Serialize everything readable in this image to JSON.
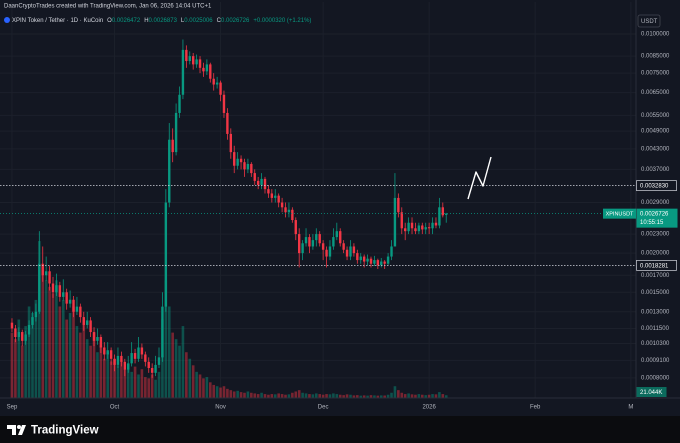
{
  "chart_data": {
    "type": "candlestick",
    "author_line": "DaanCryptoTrades created with TradingView.com, Jan 06, 2026 14:04 UTC+1",
    "symbol_line": "XPIN Token / Tether · 1D · KuCoin",
    "ohlc_legend": [
      {
        "key": "O",
        "text": "0.0026472"
      },
      {
        "key": "H",
        "text": "0.0026873"
      },
      {
        "key": "L",
        "text": "0.0025006"
      },
      {
        "key": "C",
        "text": "0.0026726"
      }
    ],
    "change_text": "+0.0000320 (+1.21%)",
    "currency": "USDT",
    "brand": "TradingView",
    "log_scale": true,
    "grid": true,
    "up_color": "#089981",
    "down_color": "#f23645",
    "xlim": [
      -3.5,
      182.5
    ],
    "xticks": [
      {
        "value": 0,
        "label": "Sep"
      },
      {
        "value": 30,
        "label": "Oct"
      },
      {
        "value": 61,
        "label": "Nov"
      },
      {
        "value": 91,
        "label": "Dec"
      },
      {
        "value": 122,
        "label": "2026"
      },
      {
        "value": 153,
        "label": "Feb"
      },
      {
        "value": 181,
        "label": "M"
      }
    ],
    "ylim": [
      0.00069,
      0.01265
    ],
    "yticks": [
      {
        "value": 0.01,
        "label": "0.0100000"
      },
      {
        "value": 0.0085,
        "label": "0.0085000"
      },
      {
        "value": 0.0075,
        "label": "0.0075000"
      },
      {
        "value": 0.0065,
        "label": "0.0065000"
      },
      {
        "value": 0.0055,
        "label": "0.0055000"
      },
      {
        "value": 0.0049,
        "label": "0.0049000"
      },
      {
        "value": 0.0043,
        "label": "0.0043000"
      },
      {
        "value": 0.0037,
        "label": "0.0037000"
      },
      {
        "value": 0.0029,
        "label": "0.0029000"
      },
      {
        "value": 0.0023,
        "label": "0.0023000"
      },
      {
        "value": 0.002,
        "label": "0.0020000"
      },
      {
        "value": 0.0017,
        "label": "0.0017000"
      },
      {
        "value": 0.0015,
        "label": "0.0015000"
      },
      {
        "value": 0.0013,
        "label": "0.0013000"
      },
      {
        "value": 0.00115,
        "label": "0.0011500"
      },
      {
        "value": 0.00103,
        "label": "0.0010300"
      },
      {
        "value": 0.00091,
        "label": "0.0009100"
      },
      {
        "value": 0.0008,
        "label": "0.0008000"
      }
    ],
    "hlines": [
      {
        "value": 0.003283,
        "label": "0.0032830"
      },
      {
        "value": 0.0018281,
        "label": "0.0018281"
      }
    ],
    "last_price": {
      "value": 0.0026726,
      "label": "0.0026726",
      "symbol": "XPINUSDT",
      "countdown": "10:55:15"
    },
    "volume_max": 1300000,
    "volume_last_label": "21.044K",
    "ohlc": [
      [
        0.0012,
        0.00124,
        0.00112,
        0.00115
      ],
      [
        0.00115,
        0.00118,
        0.00104,
        0.00108
      ],
      [
        0.00108,
        0.00116,
        0.00105,
        0.00112
      ],
      [
        0.00112,
        0.00114,
        0.00101,
        0.00105
      ],
      [
        0.00105,
        0.00113,
        0.00102,
        0.0011
      ],
      [
        0.0011,
        0.00122,
        0.00108,
        0.00118
      ],
      [
        0.00118,
        0.0013,
        0.00115,
        0.00125
      ],
      [
        0.00125,
        0.00138,
        0.00121,
        0.0013
      ],
      [
        0.0013,
        0.00235,
        0.00128,
        0.00185
      ],
      [
        0.00185,
        0.0021,
        0.00162,
        0.0017
      ],
      [
        0.0017,
        0.00195,
        0.00163,
        0.00175
      ],
      [
        0.00175,
        0.00182,
        0.00152,
        0.0016
      ],
      [
        0.0016,
        0.00168,
        0.00144,
        0.0015
      ],
      [
        0.0015,
        0.00172,
        0.00146,
        0.00158
      ],
      [
        0.00158,
        0.00162,
        0.0014,
        0.00145
      ],
      [
        0.00145,
        0.00165,
        0.00141,
        0.0015
      ],
      [
        0.0015,
        0.00154,
        0.00132,
        0.00138
      ],
      [
        0.00138,
        0.00152,
        0.00134,
        0.00142
      ],
      [
        0.00142,
        0.00146,
        0.00125,
        0.0013
      ],
      [
        0.0013,
        0.00145,
        0.00127,
        0.00135
      ],
      [
        0.00135,
        0.00138,
        0.0012,
        0.00125
      ],
      [
        0.00125,
        0.0013,
        0.00113,
        0.00118
      ],
      [
        0.00118,
        0.0013,
        0.00115,
        0.00122
      ],
      [
        0.00122,
        0.00125,
        0.00108,
        0.00112
      ],
      [
        0.00112,
        0.00116,
        0.00101,
        0.00105
      ],
      [
        0.00105,
        0.00115,
        0.00102,
        0.00108
      ],
      [
        0.00108,
        0.0011,
        0.00096,
        0.001
      ],
      [
        0.001,
        0.00104,
        0.00091,
        0.00095
      ],
      [
        0.00095,
        0.00104,
        0.00092,
        0.00098
      ],
      [
        0.00098,
        0.001,
        0.00088,
        0.00092
      ],
      [
        0.00092,
        0.00095,
        0.00084,
        0.00088
      ],
      [
        0.00088,
        0.001,
        0.00086,
        0.00094
      ],
      [
        0.00094,
        0.00097,
        0.00087,
        0.0009
      ],
      [
        0.0009,
        0.00092,
        0.00081,
        0.00085
      ],
      [
        0.00085,
        0.00094,
        0.00083,
        0.00089
      ],
      [
        0.00089,
        0.00104,
        0.00087,
        0.00096
      ],
      [
        0.00096,
        0.00099,
        0.00089,
        0.00092
      ],
      [
        0.00092,
        0.00108,
        0.0009,
        0.001
      ],
      [
        0.001,
        0.00103,
        0.00092,
        0.00095
      ],
      [
        0.00095,
        0.00097,
        0.00087,
        0.0009
      ],
      [
        0.0009,
        0.00093,
        0.00083,
        0.00086
      ],
      [
        0.00086,
        0.00089,
        0.0008,
        0.00083
      ],
      [
        0.00083,
        0.00094,
        0.00081,
        0.00088
      ],
      [
        0.00088,
        0.001,
        0.00086,
        0.00093
      ],
      [
        0.00093,
        0.0015,
        0.0009,
        0.00135
      ],
      [
        0.00135,
        0.0032,
        0.0013,
        0.0029
      ],
      [
        0.0029,
        0.0052,
        0.0028,
        0.0046
      ],
      [
        0.0046,
        0.005,
        0.0039,
        0.0042
      ],
      [
        0.0042,
        0.006,
        0.0041,
        0.0056
      ],
      [
        0.0056,
        0.0068,
        0.0054,
        0.0064
      ],
      [
        0.0064,
        0.0096,
        0.0062,
        0.0089
      ],
      [
        0.0089,
        0.0092,
        0.0078,
        0.0082
      ],
      [
        0.0082,
        0.0088,
        0.008,
        0.0085
      ],
      [
        0.0085,
        0.0087,
        0.0077,
        0.008
      ],
      [
        0.008,
        0.0086,
        0.0078,
        0.0083
      ],
      [
        0.0083,
        0.0085,
        0.0075,
        0.0078
      ],
      [
        0.0078,
        0.0081,
        0.0073,
        0.0076
      ],
      [
        0.0076,
        0.0083,
        0.0074,
        0.008
      ],
      [
        0.008,
        0.0081,
        0.007,
        0.0072
      ],
      [
        0.0072,
        0.0075,
        0.0066,
        0.0069
      ],
      [
        0.0069,
        0.0073,
        0.0067,
        0.007
      ],
      [
        0.007,
        0.0071,
        0.0061,
        0.0064
      ],
      [
        0.0064,
        0.0066,
        0.0054,
        0.0056
      ],
      [
        0.0056,
        0.0058,
        0.0046,
        0.0048
      ],
      [
        0.0048,
        0.005,
        0.004,
        0.0042
      ],
      [
        0.0042,
        0.0044,
        0.0036,
        0.0038
      ],
      [
        0.0038,
        0.0042,
        0.0037,
        0.004
      ],
      [
        0.004,
        0.0041,
        0.0037,
        0.0039
      ],
      [
        0.0039,
        0.004,
        0.0035,
        0.0037
      ],
      [
        0.0037,
        0.004,
        0.0036,
        0.00385
      ],
      [
        0.00385,
        0.0039,
        0.0035,
        0.0036
      ],
      [
        0.0036,
        0.0037,
        0.0033,
        0.0034
      ],
      [
        0.0034,
        0.0035,
        0.0032,
        0.0033
      ],
      [
        0.0033,
        0.0036,
        0.0032,
        0.00345
      ],
      [
        0.00345,
        0.0035,
        0.0031,
        0.0032
      ],
      [
        0.0032,
        0.0033,
        0.003,
        0.0031
      ],
      [
        0.0031,
        0.0032,
        0.0029,
        0.003
      ],
      [
        0.003,
        0.0032,
        0.0029,
        0.00305
      ],
      [
        0.00305,
        0.0031,
        0.0028,
        0.0029
      ],
      [
        0.0029,
        0.003,
        0.0027,
        0.0028
      ],
      [
        0.0028,
        0.0029,
        0.0026,
        0.0027
      ],
      [
        0.0027,
        0.0029,
        0.0026,
        0.00275
      ],
      [
        0.00275,
        0.0028,
        0.0025,
        0.00255
      ],
      [
        0.00255,
        0.0026,
        0.0022,
        0.0023
      ],
      [
        0.0023,
        0.0024,
        0.0018,
        0.002
      ],
      [
        0.002,
        0.0022,
        0.0019,
        0.00215
      ],
      [
        0.00215,
        0.0024,
        0.0021,
        0.00225
      ],
      [
        0.00225,
        0.0023,
        0.002,
        0.0021
      ],
      [
        0.0021,
        0.0023,
        0.00205,
        0.0022
      ],
      [
        0.0022,
        0.0024,
        0.0021,
        0.0023
      ],
      [
        0.0023,
        0.00235,
        0.0021,
        0.00215
      ],
      [
        0.00215,
        0.0022,
        0.0019,
        0.00205
      ],
      [
        0.00205,
        0.0021,
        0.0018,
        0.00195
      ],
      [
        0.00195,
        0.0022,
        0.0019,
        0.0021
      ],
      [
        0.0021,
        0.0024,
        0.00205,
        0.00225
      ],
      [
        0.00225,
        0.0025,
        0.0022,
        0.00235
      ],
      [
        0.00235,
        0.0024,
        0.0021,
        0.00215
      ],
      [
        0.00215,
        0.0022,
        0.002,
        0.00205
      ],
      [
        0.00205,
        0.0021,
        0.0019,
        0.00195
      ],
      [
        0.00195,
        0.0022,
        0.0019,
        0.0021
      ],
      [
        0.0021,
        0.00215,
        0.00195,
        0.002
      ],
      [
        0.002,
        0.00205,
        0.00185,
        0.0019
      ],
      [
        0.0019,
        0.002,
        0.00185,
        0.00195
      ],
      [
        0.00195,
        0.00198,
        0.0018,
        0.00188
      ],
      [
        0.00188,
        0.00198,
        0.00183,
        0.00192
      ],
      [
        0.00192,
        0.00195,
        0.0018,
        0.00185
      ],
      [
        0.00185,
        0.00196,
        0.00182,
        0.0019
      ],
      [
        0.0019,
        0.00192,
        0.00178,
        0.00183
      ],
      [
        0.00183,
        0.00193,
        0.0018,
        0.00188
      ],
      [
        0.00188,
        0.0019,
        0.00178,
        0.00185
      ],
      [
        0.00185,
        0.002,
        0.00183,
        0.00195
      ],
      [
        0.00195,
        0.0022,
        0.0019,
        0.0021
      ],
      [
        0.0021,
        0.0036,
        0.0021,
        0.003
      ],
      [
        0.003,
        0.0031,
        0.0026,
        0.0027
      ],
      [
        0.0027,
        0.0028,
        0.0023,
        0.0024
      ],
      [
        0.0024,
        0.0025,
        0.0022,
        0.00235
      ],
      [
        0.00235,
        0.0026,
        0.0023,
        0.0025
      ],
      [
        0.0025,
        0.0026,
        0.0023,
        0.0024
      ],
      [
        0.0024,
        0.0025,
        0.0023,
        0.00235
      ],
      [
        0.00235,
        0.0025,
        0.0023,
        0.00245
      ],
      [
        0.00245,
        0.0025,
        0.0023,
        0.00238
      ],
      [
        0.00238,
        0.0025,
        0.0023,
        0.00242
      ],
      [
        0.00242,
        0.0025,
        0.0023,
        0.0024
      ],
      [
        0.0024,
        0.0026,
        0.0023,
        0.0025
      ],
      [
        0.0025,
        0.0026,
        0.0024,
        0.00245
      ],
      [
        0.00245,
        0.003,
        0.0024,
        0.0028
      ],
      [
        0.0028,
        0.0029,
        0.0026,
        0.00264
      ],
      [
        0.0026472,
        0.0026873,
        0.0025006,
        0.0026726
      ]
    ],
    "volume": [
      500000,
      450000,
      600000,
      400000,
      550000,
      700000,
      650000,
      750000,
      1200000,
      1000000,
      900000,
      850000,
      800000,
      900000,
      700000,
      750000,
      600000,
      650000,
      700000,
      550000,
      500000,
      600000,
      450000,
      400000,
      500000,
      350000,
      400000,
      300000,
      350000,
      280000,
      300000,
      250000,
      280000,
      220000,
      260000,
      200000,
      240000,
      180000,
      220000,
      160000,
      150000,
      180000,
      140000,
      200000,
      600000,
      900000,
      700000,
      500000,
      450000,
      400000,
      550000,
      350000,
      300000,
      250000,
      200000,
      180000,
      150000,
      160000,
      120000,
      100000,
      90000,
      80000,
      90000,
      70000,
      60000,
      50000,
      55000,
      45000,
      40000,
      50000,
      40000,
      35000,
      30000,
      40000,
      30000,
      25000,
      30000,
      28000,
      35000,
      30000,
      25000,
      28000,
      40000,
      50000,
      60000,
      40000,
      35000,
      30000,
      28000,
      35000,
      30000,
      25000,
      30000,
      28000,
      35000,
      30000,
      25000,
      22000,
      28000,
      25000,
      20000,
      22000,
      18000,
      20000,
      18000,
      22000,
      20000,
      18000,
      20000,
      19000,
      25000,
      40000,
      90000,
      60000,
      40000,
      30000,
      35000,
      28000,
      25000,
      30000,
      25000,
      22000,
      25000,
      30000,
      28000,
      45000,
      30000,
      21044
    ]
  }
}
